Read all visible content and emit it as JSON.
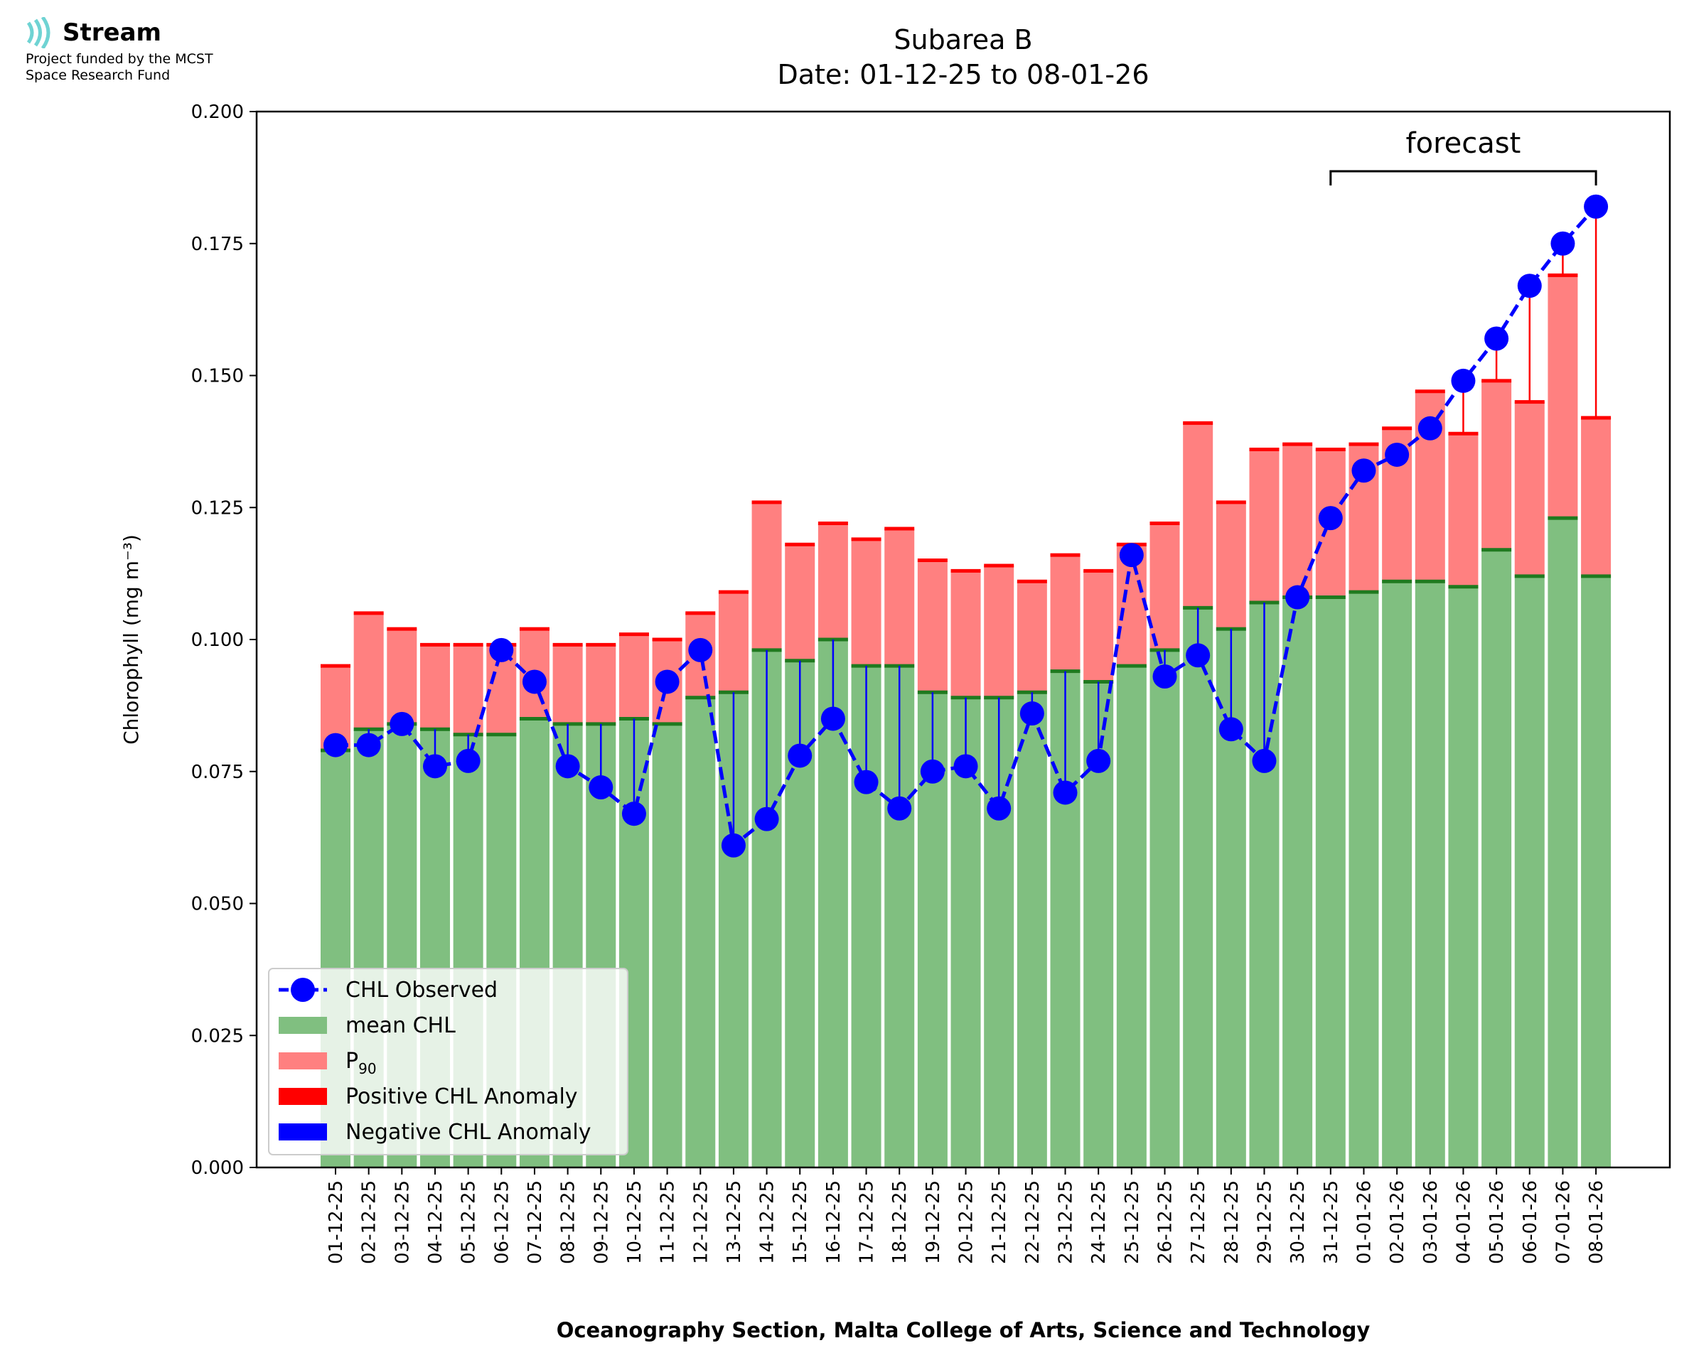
{
  "logo": {
    "name": "Stream",
    "line1": "Project funded by the MCST",
    "line2": "Space Research Fund"
  },
  "chart_data": {
    "type": "bar",
    "title": "Subarea B",
    "subtitle": "Date: 01-12-25 to 08-01-26",
    "xlabel": "Oceanography Section, Malta College of Arts, Science and Technology",
    "ylabel": "Chlorophyll (mg m⁻³)",
    "ylim": [
      0,
      0.2
    ],
    "yticks": [
      "0.000",
      "0.025",
      "0.050",
      "0.075",
      "0.100",
      "0.125",
      "0.150",
      "0.175",
      "0.200"
    ],
    "annotation": "forecast",
    "forecast_range": [
      "31-12-25",
      "08-01-26"
    ],
    "grid": false,
    "legend_position": "lower-left",
    "legend": [
      "CHL Observed",
      "mean CHL",
      "P90",
      "Positive CHL Anomaly",
      "Negative CHL Anomaly"
    ],
    "categories": [
      "01-12-25",
      "02-12-25",
      "03-12-25",
      "04-12-25",
      "05-12-25",
      "06-12-25",
      "07-12-25",
      "08-12-25",
      "09-12-25",
      "10-12-25",
      "11-12-25",
      "12-12-25",
      "13-12-25",
      "14-12-25",
      "15-12-25",
      "16-12-25",
      "17-12-25",
      "18-12-25",
      "19-12-25",
      "20-12-25",
      "21-12-25",
      "22-12-25",
      "23-12-25",
      "24-12-25",
      "25-12-25",
      "26-12-25",
      "27-12-25",
      "28-12-25",
      "29-12-25",
      "30-12-25",
      "31-12-25",
      "01-01-26",
      "02-01-26",
      "03-01-26",
      "04-01-26",
      "05-01-26",
      "06-01-26",
      "07-01-26",
      "08-01-26"
    ],
    "series": [
      {
        "name": "mean CHL",
        "values": [
          0.079,
          0.083,
          0.084,
          0.083,
          0.082,
          0.082,
          0.085,
          0.084,
          0.084,
          0.085,
          0.084,
          0.089,
          0.09,
          0.098,
          0.096,
          0.1,
          0.095,
          0.095,
          0.09,
          0.089,
          0.089,
          0.09,
          0.094,
          0.092,
          0.095,
          0.098,
          0.106,
          0.102,
          0.107,
          0.108,
          0.108,
          0.109,
          0.111,
          0.111,
          0.11,
          0.117,
          0.112,
          0.123,
          0.112
        ]
      },
      {
        "name": "P90",
        "values": [
          0.095,
          0.105,
          0.102,
          0.099,
          0.099,
          0.099,
          0.102,
          0.099,
          0.099,
          0.101,
          0.1,
          0.105,
          0.109,
          0.126,
          0.118,
          0.122,
          0.119,
          0.121,
          0.115,
          0.113,
          0.114,
          0.111,
          0.116,
          0.113,
          0.118,
          0.122,
          0.141,
          0.126,
          0.136,
          0.137,
          0.136,
          0.137,
          0.14,
          0.147,
          0.139,
          0.149,
          0.145,
          0.169,
          0.142
        ]
      },
      {
        "name": "CHL Observed",
        "values": [
          0.08,
          0.08,
          0.084,
          0.076,
          0.077,
          0.098,
          0.092,
          0.076,
          0.072,
          0.067,
          0.092,
          0.098,
          0.061,
          0.066,
          0.078,
          0.085,
          0.073,
          0.068,
          0.075,
          0.076,
          0.068,
          0.086,
          0.071,
          0.077,
          0.116,
          0.093,
          0.097,
          0.083,
          0.077,
          0.108,
          0.123,
          0.132,
          0.135,
          0.14,
          0.149,
          0.157,
          0.167,
          0.175,
          0.182
        ]
      }
    ],
    "colors": {
      "mean": "#80bf80",
      "mean_line": "#1f7a1f",
      "p90": "#ff8080",
      "p90_line": "#ff0000",
      "observed": "#0000ff",
      "positive": "#ff0000",
      "negative": "#0000ff"
    }
  }
}
